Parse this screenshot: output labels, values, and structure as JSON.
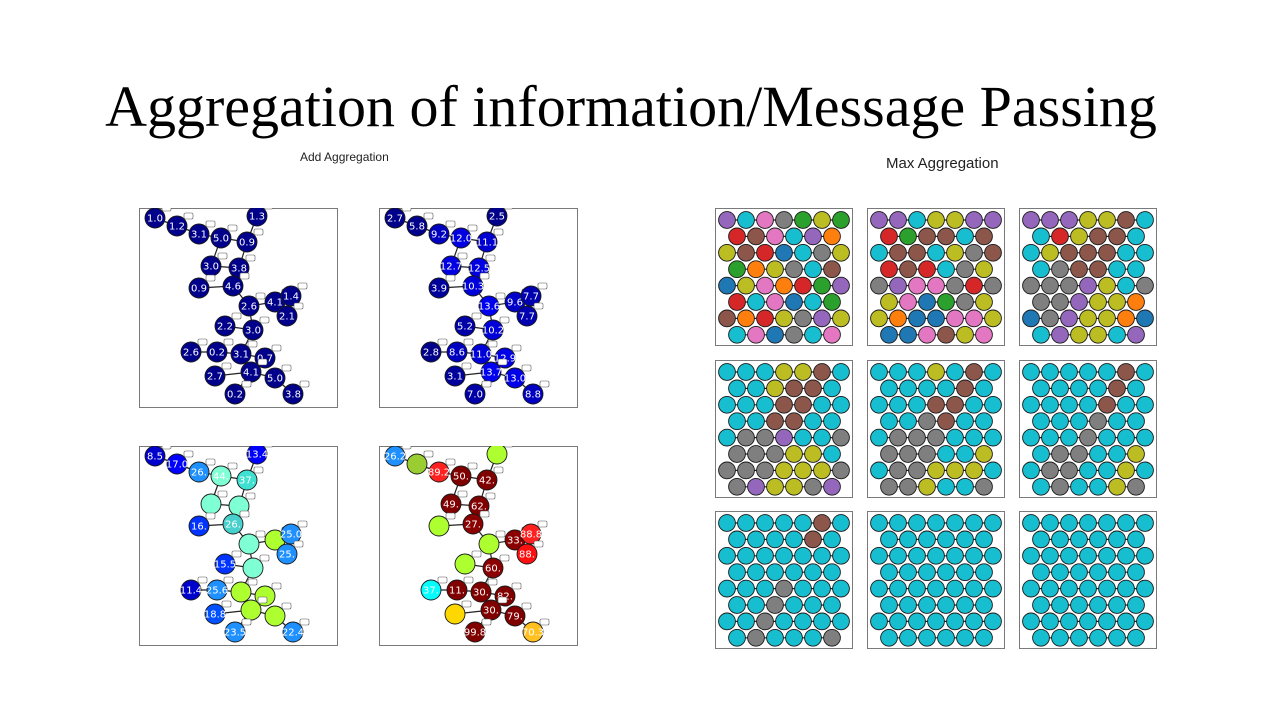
{
  "title": "Aggregation of information/Message Passing",
  "add_label": "Add Aggregation",
  "max_label": "Max Aggregation",
  "add_panels": [
    {
      "values": [
        "1.0",
        "1.2",
        "3.1",
        "5.0",
        "0.9",
        "1.3",
        "3.0",
        "3.8",
        "0.9",
        "4.6",
        "2.6",
        "4.1",
        "1.4",
        "2.1",
        "2.2",
        "3.0",
        "2.6",
        "0.2",
        "3.1",
        "0.7",
        "2.7",
        "4.1",
        "5.0",
        "0.2",
        "3.8"
      ],
      "colors": [
        "#00008b",
        "#00008b",
        "#00008b",
        "#00008b",
        "#00008b",
        "#00008b",
        "#00008b",
        "#00008b",
        "#00008b",
        "#00008b",
        "#00008b",
        "#00008b",
        "#00008b",
        "#00008b",
        "#00008b",
        "#00008b",
        "#00008b",
        "#00008b",
        "#00008b",
        "#00008b",
        "#00008b",
        "#00008b",
        "#00008b",
        "#00008b",
        "#00008b"
      ]
    },
    {
      "values": [
        "2.7",
        "5.8",
        "9.2",
        "12.0",
        "11.1",
        "2.5",
        "12.7",
        "12.5",
        "3.9",
        "10.3",
        "13.6",
        "9.6",
        "7.7",
        "7.7",
        "5.2",
        "10.2",
        "2.8",
        "8.6",
        "11.0",
        "12.9",
        "3.1",
        "13.7",
        "13.0",
        "7.0",
        "8.8"
      ],
      "colors": [
        "#00008b",
        "#00008b",
        "#0000c0",
        "#0000e0",
        "#0000d0",
        "#00008b",
        "#0000e0",
        "#0000e0",
        "#00009a",
        "#0000d8",
        "#0000f0",
        "#0000c8",
        "#0000b0",
        "#0000b0",
        "#0000a8",
        "#0000d8",
        "#00008b",
        "#0000c0",
        "#0000d8",
        "#0000e8",
        "#00009a",
        "#0000f0",
        "#0000e8",
        "#0000a8",
        "#0000c0"
      ]
    },
    {
      "values": [
        "8.5",
        "17.0",
        "26.",
        "44.",
        "37.",
        "13.4",
        "",
        "",
        "16.",
        "26.",
        "",
        "",
        "25.0",
        "25.",
        "15.5",
        "",
        "11.4",
        "25.6",
        "",
        "",
        "18.8",
        "",
        "",
        "23.5",
        "22.4"
      ],
      "colors": [
        "#0000cd",
        "#0000ff",
        "#1e90ff",
        "#7fffd4",
        "#40e0d0",
        "#0000ff",
        "#7fffd4",
        "#7fffd4",
        "#0033ff",
        "#48d1cc",
        "#7fffd4",
        "#adff2f",
        "#1e90ff",
        "#1e90ff",
        "#0033ff",
        "#7fffd4",
        "#0000cd",
        "#1e90ff",
        "#adff2f",
        "#adff2f",
        "#0050ff",
        "#adff2f",
        "#adff2f",
        "#1e90ff",
        "#1e90ff"
      ]
    },
    {
      "values": [
        "26.2",
        "",
        "89.2",
        "50.",
        "42.",
        "",
        "49.",
        "62.",
        "",
        "27.",
        "",
        "33.",
        "88.8",
        "88.",
        "",
        "60.",
        "37.",
        "11.",
        "30.",
        "82.",
        "",
        "30.",
        "79.",
        "99.8",
        "70.3"
      ],
      "colors": [
        "#1e90ff",
        "#9acd32",
        "#ff2020",
        "#800000",
        "#800000",
        "#adff2f",
        "#800000",
        "#800000",
        "#adff2f",
        "#8b0000",
        "#adff2f",
        "#8b0000",
        "#ff2020",
        "#ff1010",
        "#adff2f",
        "#8b0000",
        "#00ffff",
        "#800000",
        "#800000",
        "#800000",
        "#ffd700",
        "#800000",
        "#800000",
        "#800000",
        "#ffc020"
      ]
    }
  ],
  "max_panels": [
    [
      "#9467bd",
      "#17becf",
      "#e377c2",
      "#7f7f7f",
      "#2ca02c",
      "#bcbd22",
      "#2ca02c",
      "#d62728",
      "#8c564b",
      "#e377c2",
      "#17becf",
      "#9467bd",
      "#ff7f0e",
      "#bcbd22",
      "#8c564b",
      "#d62728",
      "#1f77b4",
      "#17becf",
      "#7f7f7f",
      "#bcbd22",
      "#2ca02c",
      "#ff7f0e",
      "#bcbd22",
      "#7f7f7f",
      "#17becf",
      "#8c564b",
      "#1f77b4",
      "#bcbd22",
      "#e377c2",
      "#ff7f0e",
      "#d62728",
      "#2ca02c",
      "#9467bd",
      "#d62728",
      "#17becf",
      "#e377c2",
      "#1f77b4",
      "#17becf",
      "#2ca02c",
      "#8c564b",
      "#ff7f0e",
      "#d62728",
      "#bcbd22",
      "#7f7f7f",
      "#9467bd",
      "#bcbd22",
      "#17becf",
      "#e377c2",
      "#1f77b4",
      "#7f7f7f",
      "#17becf",
      "#e377c2"
    ],
    [
      "#9467bd",
      "#9467bd",
      "#17becf",
      "#bcbd22",
      "#bcbd22",
      "#9467bd",
      "#9467bd",
      "#d62728",
      "#2ca02c",
      "#8c564b",
      "#8c564b",
      "#17becf",
      "#8c564b",
      "#17becf",
      "#8c564b",
      "#8c564b",
      "#17becf",
      "#bcbd22",
      "#7f7f7f",
      "#8c564b",
      "#d62728",
      "#8c564b",
      "#d62728",
      "#17becf",
      "#7f7f7f",
      "#bcbd22",
      "#7f7f7f",
      "#9467bd",
      "#e377c2",
      "#e377c2",
      "#7f7f7f",
      "#d62728",
      "#7f7f7f",
      "#bcbd22",
      "#e377c2",
      "#1f77b4",
      "#2ca02c",
      "#7f7f7f",
      "#bcbd22",
      "#bcbd22",
      "#ff7f0e",
      "#1f77b4",
      "#1f77b4",
      "#e377c2",
      "#e377c2",
      "#bcbd22",
      "#1f77b4",
      "#1f77b4",
      "#e377c2",
      "#8c564b",
      "#bcbd22",
      "#e377c2"
    ],
    [
      "#9467bd",
      "#9467bd",
      "#9467bd",
      "#bcbd22",
      "#bcbd22",
      "#8c564b",
      "#17becf",
      "#17becf",
      "#d62728",
      "#bcbd22",
      "#8c564b",
      "#8c564b",
      "#17becf",
      "#17becf",
      "#bcbd22",
      "#8c564b",
      "#8c564b",
      "#8c564b",
      "#17becf",
      "#17becf",
      "#17becf",
      "#7f7f7f",
      "#8c564b",
      "#8c564b",
      "#17becf",
      "#17becf",
      "#7f7f7f",
      "#7f7f7f",
      "#7f7f7f",
      "#9467bd",
      "#bcbd22",
      "#17becf",
      "#7f7f7f",
      "#7f7f7f",
      "#7f7f7f",
      "#9467bd",
      "#bcbd22",
      "#bcbd22",
      "#ff7f0e",
      "#1f77b4",
      "#7f7f7f",
      "#9467bd",
      "#bcbd22",
      "#bcbd22",
      "#ff7f0e",
      "#1f77b4",
      "#17becf",
      "#9467bd",
      "#bcbd22",
      "#bcbd22",
      "#17becf",
      "#9467bd"
    ],
    [
      "#17becf",
      "#17becf",
      "#17becf",
      "#bcbd22",
      "#bcbd22",
      "#8c564b",
      "#17becf",
      "#17becf",
      "#17becf",
      "#bcbd22",
      "#8c564b",
      "#8c564b",
      "#17becf",
      "#17becf",
      "#17becf",
      "#17becf",
      "#8c564b",
      "#8c564b",
      "#17becf",
      "#17becf",
      "#17becf",
      "#17becf",
      "#8c564b",
      "#8c564b",
      "#17becf",
      "#17becf",
      "#17becf",
      "#7f7f7f",
      "#7f7f7f",
      "#9467bd",
      "#17becf",
      "#17becf",
      "#7f7f7f",
      "#7f7f7f",
      "#7f7f7f",
      "#7f7f7f",
      "#bcbd22",
      "#bcbd22",
      "#17becf",
      "#7f7f7f",
      "#7f7f7f",
      "#7f7f7f",
      "#bcbd22",
      "#bcbd22",
      "#bcbd22",
      "#7f7f7f",
      "#7f7f7f",
      "#9467bd",
      "#bcbd22",
      "#bcbd22",
      "#7f7f7f",
      "#9467bd"
    ],
    [
      "#17becf",
      "#17becf",
      "#17becf",
      "#bcbd22",
      "#17becf",
      "#8c564b",
      "#17becf",
      "#17becf",
      "#17becf",
      "#17becf",
      "#17becf",
      "#8c564b",
      "#17becf",
      "#17becf",
      "#17becf",
      "#17becf",
      "#8c564b",
      "#8c564b",
      "#17becf",
      "#17becf",
      "#17becf",
      "#17becf",
      "#7f7f7f",
      "#8c564b",
      "#17becf",
      "#17becf",
      "#17becf",
      "#7f7f7f",
      "#7f7f7f",
      "#7f7f7f",
      "#17becf",
      "#17becf",
      "#17becf",
      "#7f7f7f",
      "#7f7f7f",
      "#7f7f7f",
      "#17becf",
      "#17becf",
      "#bcbd22",
      "#17becf",
      "#7f7f7f",
      "#7f7f7f",
      "#bcbd22",
      "#bcbd22",
      "#bcbd22",
      "#17becf",
      "#7f7f7f",
      "#7f7f7f",
      "#bcbd22",
      "#17becf",
      "#17becf",
      "#7f7f7f"
    ],
    [
      "#17becf",
      "#17becf",
      "#17becf",
      "#17becf",
      "#17becf",
      "#8c564b",
      "#17becf",
      "#17becf",
      "#17becf",
      "#17becf",
      "#17becf",
      "#8c564b",
      "#17becf",
      "#17becf",
      "#17becf",
      "#17becf",
      "#17becf",
      "#8c564b",
      "#17becf",
      "#17becf",
      "#17becf",
      "#17becf",
      "#17becf",
      "#7f7f7f",
      "#17becf",
      "#17becf",
      "#17becf",
      "#17becf",
      "#17becf",
      "#7f7f7f",
      "#17becf",
      "#17becf",
      "#17becf",
      "#17becf",
      "#7f7f7f",
      "#7f7f7f",
      "#17becf",
      "#17becf",
      "#bcbd22",
      "#17becf",
      "#7f7f7f",
      "#7f7f7f",
      "#17becf",
      "#17becf",
      "#bcbd22",
      "#17becf",
      "#17becf",
      "#7f7f7f",
      "#17becf",
      "#17becf",
      "#bcbd22",
      "#7f7f7f"
    ],
    [
      "#17becf",
      "#17becf",
      "#17becf",
      "#17becf",
      "#17becf",
      "#8c564b",
      "#17becf",
      "#17becf",
      "#17becf",
      "#17becf",
      "#17becf",
      "#8c564b",
      "#17becf",
      "#17becf",
      "#17becf",
      "#17becf",
      "#17becf",
      "#17becf",
      "#17becf",
      "#17becf",
      "#17becf",
      "#17becf",
      "#17becf",
      "#17becf",
      "#17becf",
      "#17becf",
      "#17becf",
      "#17becf",
      "#17becf",
      "#7f7f7f",
      "#17becf",
      "#17becf",
      "#17becf",
      "#17becf",
      "#17becf",
      "#7f7f7f",
      "#17becf",
      "#17becf",
      "#17becf",
      "#17becf",
      "#17becf",
      "#7f7f7f",
      "#17becf",
      "#17becf",
      "#17becf",
      "#17becf",
      "#17becf",
      "#7f7f7f",
      "#17becf",
      "#17becf",
      "#17becf",
      "#7f7f7f"
    ],
    [
      "#17becf",
      "#17becf",
      "#17becf",
      "#17becf",
      "#17becf",
      "#17becf",
      "#17becf",
      "#17becf",
      "#17becf",
      "#17becf",
      "#17becf",
      "#17becf",
      "#17becf",
      "#17becf",
      "#17becf",
      "#17becf",
      "#17becf",
      "#17becf",
      "#17becf",
      "#17becf",
      "#17becf",
      "#17becf",
      "#17becf",
      "#17becf",
      "#17becf",
      "#17becf",
      "#17becf",
      "#17becf",
      "#17becf",
      "#17becf",
      "#17becf",
      "#17becf",
      "#17becf",
      "#17becf",
      "#17becf",
      "#17becf",
      "#17becf",
      "#17becf",
      "#17becf",
      "#17becf",
      "#17becf",
      "#17becf",
      "#17becf",
      "#17becf",
      "#17becf",
      "#17becf",
      "#17becf",
      "#17becf",
      "#17becf",
      "#17becf",
      "#17becf",
      "#17becf"
    ],
    [
      "#17becf",
      "#17becf",
      "#17becf",
      "#17becf",
      "#17becf",
      "#17becf",
      "#17becf",
      "#17becf",
      "#17becf",
      "#17becf",
      "#17becf",
      "#17becf",
      "#17becf",
      "#17becf",
      "#17becf",
      "#17becf",
      "#17becf",
      "#17becf",
      "#17becf",
      "#17becf",
      "#17becf",
      "#17becf",
      "#17becf",
      "#17becf",
      "#17becf",
      "#17becf",
      "#17becf",
      "#17becf",
      "#17becf",
      "#17becf",
      "#17becf",
      "#17becf",
      "#17becf",
      "#17becf",
      "#17becf",
      "#17becf",
      "#17becf",
      "#17becf",
      "#17becf",
      "#17becf",
      "#17becf",
      "#17becf",
      "#17becf",
      "#17becf",
      "#17becf",
      "#17becf",
      "#17becf",
      "#17becf",
      "#17becf",
      "#17becf",
      "#17becf",
      "#17becf"
    ]
  ]
}
